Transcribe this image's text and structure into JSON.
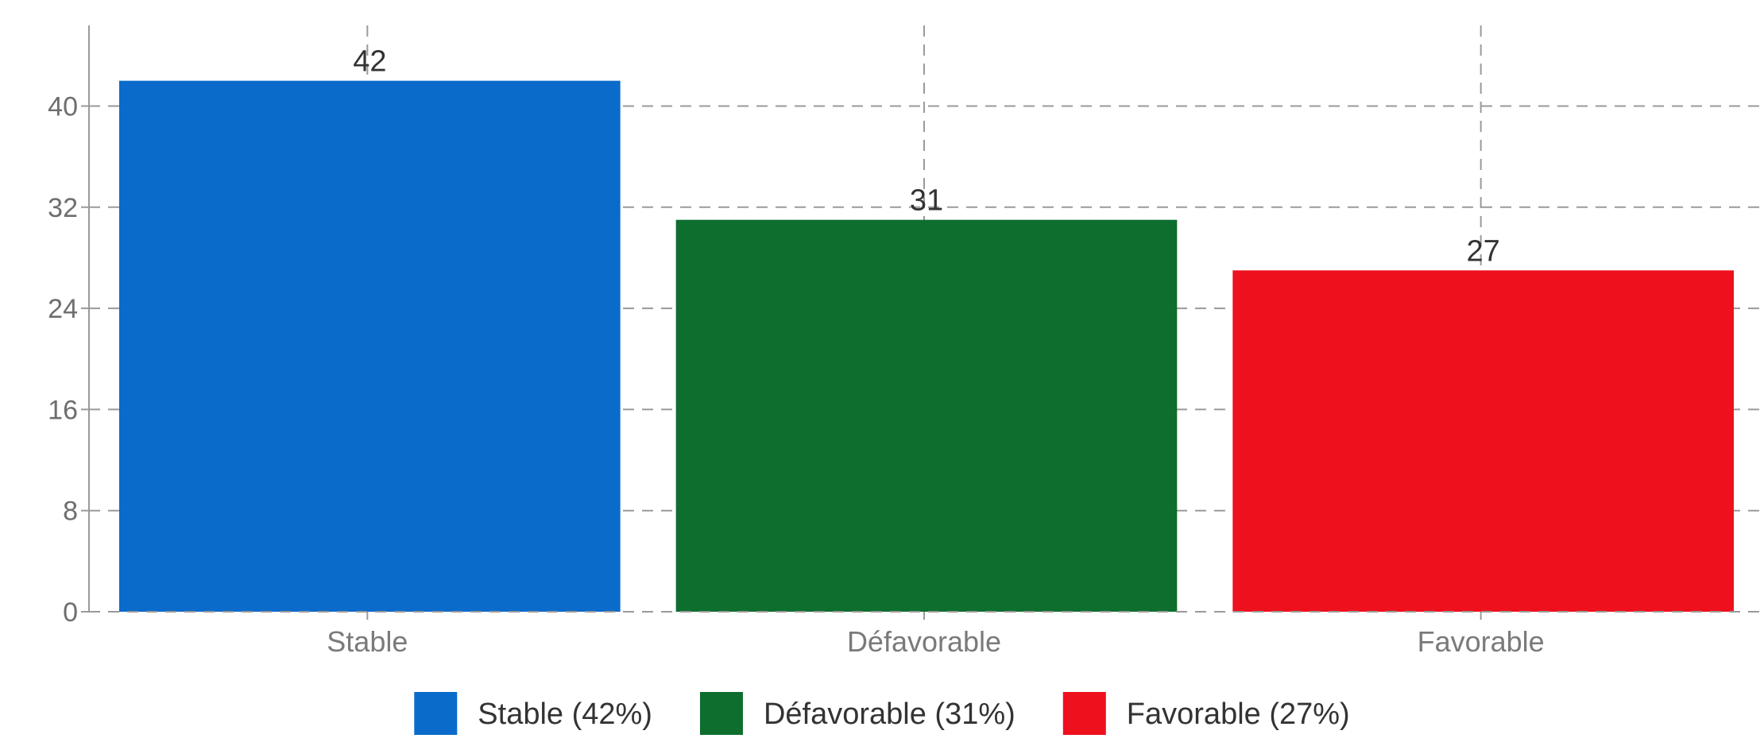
{
  "chart_data": {
    "type": "bar",
    "title": "",
    "xlabel": "",
    "ylabel": "",
    "categories": [
      "Stable",
      "Défavorable",
      "Favorable"
    ],
    "values": [
      42,
      31,
      27
    ],
    "colors": [
      "#0a6bcb",
      "#0d6e2e",
      "#ef101e"
    ],
    "ylim": [
      0,
      46
    ],
    "yticks": [
      0,
      8,
      16,
      24,
      32,
      40
    ],
    "grid": true,
    "data_labels": [
      "42",
      "31",
      "27"
    ],
    "legend": {
      "position": "bottom",
      "entries": [
        "Stable (42%)",
        "Défavorable (31%)",
        "Favorable (27%)"
      ]
    }
  }
}
